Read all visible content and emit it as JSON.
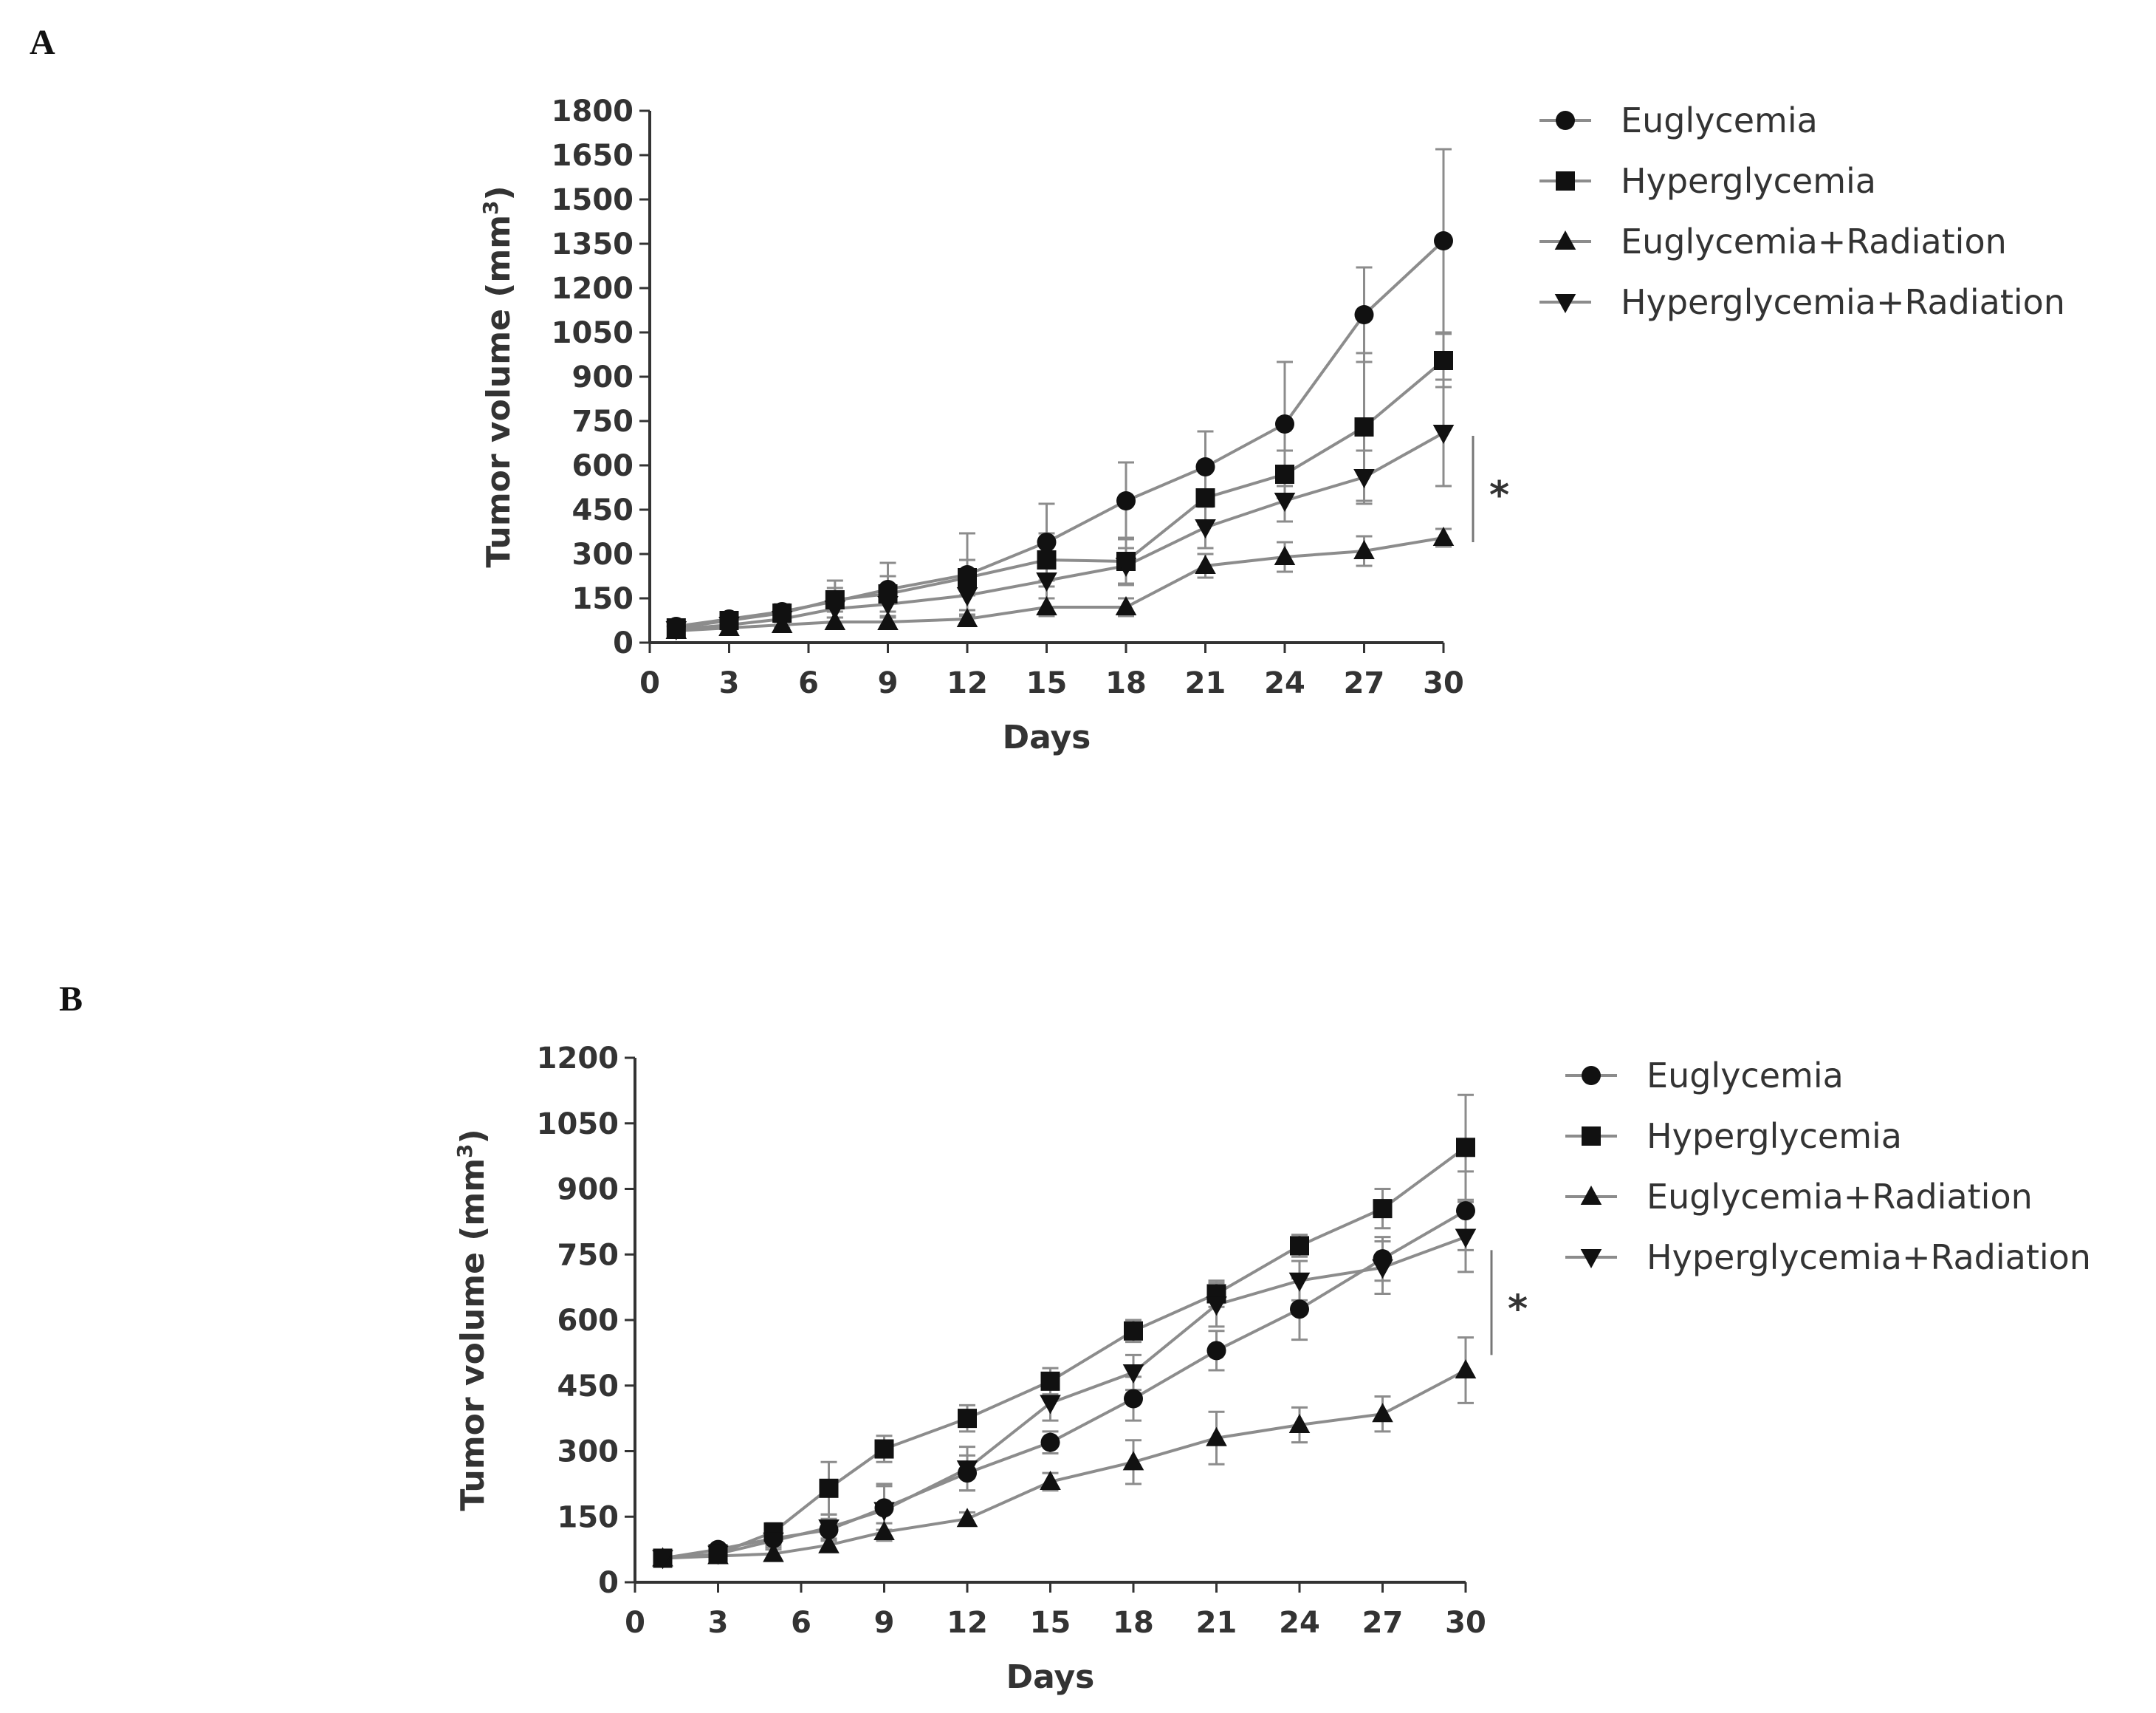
{
  "panels": [
    {
      "letter": "A"
    },
    {
      "letter": "B"
    }
  ],
  "chart_data": [
    {
      "type": "line",
      "panel": "A",
      "xlabel": "Days",
      "ylabel": "Tumor volume (mm",
      "ylabel_sup": "3",
      "ylabel_close": ")",
      "xlim": [
        0,
        30
      ],
      "ylim": [
        0,
        1800
      ],
      "xticks": [
        0,
        3,
        6,
        9,
        12,
        15,
        18,
        21,
        24,
        27,
        30
      ],
      "yticks": [
        0,
        150,
        300,
        450,
        600,
        750,
        900,
        1050,
        1200,
        1350,
        1500,
        1650,
        1800
      ],
      "x": [
        1,
        3,
        5,
        7,
        9,
        12,
        15,
        18,
        21,
        24,
        27,
        30
      ],
      "series": [
        {
          "name": "Euglycemia",
          "marker": "circle",
          "values": [
            55,
            80,
            105,
            140,
            180,
            230,
            340,
            480,
            595,
            740,
            1110,
            1360
          ],
          "errors": [
            15,
            20,
            25,
            70,
            90,
            140,
            130,
            130,
            120,
            210,
            160,
            310
          ]
        },
        {
          "name": "Hyperglycemia",
          "marker": "square",
          "values": [
            50,
            75,
            100,
            145,
            165,
            220,
            280,
            275,
            490,
            570,
            730,
            955
          ],
          "errors": [
            15,
            15,
            20,
            40,
            60,
            60,
            90,
            80,
            90,
            80,
            250,
            90
          ]
        },
        {
          "name": "Euglycemia+Radiation",
          "marker": "triangle-up",
          "values": [
            40,
            50,
            60,
            70,
            70,
            80,
            120,
            120,
            260,
            290,
            310,
            355
          ],
          "errors": [
            10,
            10,
            10,
            15,
            15,
            15,
            30,
            30,
            40,
            50,
            50,
            30
          ]
        },
        {
          "name": "Hyperglycemia+Radiation",
          "marker": "triangle-down",
          "values": [
            45,
            60,
            80,
            115,
            130,
            160,
            210,
            260,
            390,
            480,
            560,
            710
          ],
          "errors": [
            10,
            15,
            20,
            30,
            40,
            50,
            60,
            60,
            70,
            70,
            90,
            180
          ]
        }
      ],
      "significance": "*"
    },
    {
      "type": "line",
      "panel": "B",
      "xlabel": "Days",
      "ylabel": "Tumor volume (mm",
      "ylabel_sup": "3",
      "ylabel_close": ")",
      "xlim": [
        0,
        30
      ],
      "ylim": [
        0,
        1200
      ],
      "xticks": [
        0,
        3,
        6,
        9,
        12,
        15,
        18,
        21,
        24,
        27,
        30
      ],
      "yticks": [
        0,
        150,
        300,
        450,
        600,
        750,
        900,
        1050,
        1200
      ],
      "x": [
        1,
        3,
        5,
        7,
        9,
        12,
        15,
        18,
        21,
        24,
        27,
        30
      ],
      "series": [
        {
          "name": "Euglycemia",
          "marker": "circle",
          "values": [
            55,
            75,
            100,
            120,
            170,
            250,
            320,
            420,
            530,
            625,
            740,
            850
          ],
          "errors": [
            10,
            10,
            15,
            25,
            50,
            40,
            25,
            50,
            45,
            70,
            50,
            90
          ]
        },
        {
          "name": "Hyperglycemia",
          "marker": "square",
          "values": [
            55,
            65,
            115,
            215,
            305,
            375,
            460,
            575,
            660,
            770,
            855,
            995
          ],
          "errors": [
            10,
            10,
            20,
            60,
            30,
            30,
            30,
            25,
            30,
            25,
            45,
            120
          ]
        },
        {
          "name": "Euglycemia+Radiation",
          "marker": "triangle-up",
          "values": [
            55,
            60,
            65,
            85,
            115,
            145,
            230,
            275,
            330,
            360,
            385,
            485
          ],
          "errors": [
            10,
            10,
            10,
            15,
            20,
            15,
            20,
            50,
            60,
            40,
            40,
            75
          ]
        },
        {
          "name": "Hyperglycemia+Radiation",
          "marker": "triangle-down",
          "values": [
            55,
            65,
            95,
            125,
            165,
            260,
            410,
            480,
            635,
            690,
            720,
            790
          ],
          "errors": [
            10,
            10,
            15,
            30,
            60,
            50,
            40,
            40,
            50,
            45,
            60,
            80
          ]
        }
      ],
      "significance": "*"
    }
  ]
}
